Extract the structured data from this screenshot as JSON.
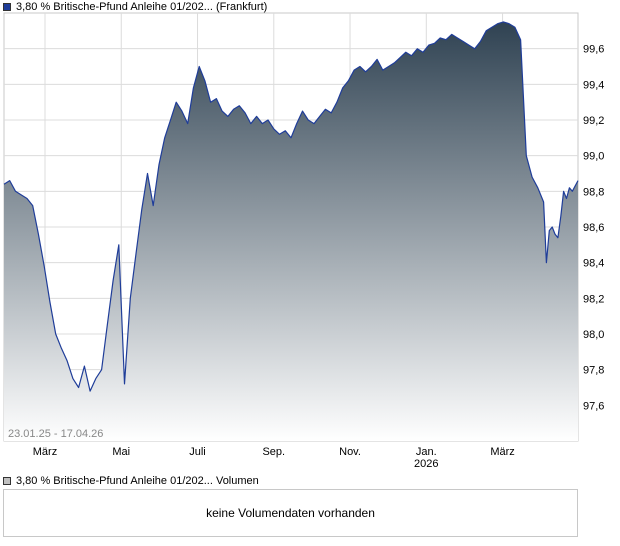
{
  "price_legend": {
    "label": "3,80 % Britische-Pfund Anleihe 01/202...  (Frankfurt)",
    "color": "#1f3d99"
  },
  "volume_legend": {
    "label": "3,80 % Britische-Pfund Anleihe 01/202...  Volumen",
    "color": "#c0c0c0"
  },
  "volume_panel": {
    "message": "keine Volumendaten vorhanden"
  },
  "date_range": "23.01.25 - 17.04.26",
  "chart_data": {
    "type": "area",
    "ylim": [
      97.4,
      99.8
    ],
    "y_ticks": [
      "99,6",
      "99,4",
      "99,2",
      "99,0",
      "98,8",
      "98,6",
      "98,4",
      "98,2",
      "98,0",
      "97,8",
      "97,6"
    ],
    "x_ticks": [
      "März",
      "Mai",
      "Juli",
      "Sep.",
      "Nov.",
      "Jan.",
      "März"
    ],
    "x_subticks": [
      "",
      "",
      "",
      "",
      "",
      "2026",
      ""
    ],
    "grid": true,
    "colors": {
      "line": "#1f3d99",
      "fill_top": "#2f4252",
      "fill_bottom": "#ffffff",
      "grid": "#dcdcdc"
    },
    "series": [
      {
        "values": [
          [
            0.0,
            98.84
          ],
          [
            0.01,
            98.86
          ],
          [
            0.02,
            98.8
          ],
          [
            0.03,
            98.78
          ],
          [
            0.04,
            98.76
          ],
          [
            0.05,
            98.72
          ],
          [
            0.06,
            98.56
          ],
          [
            0.07,
            98.38
          ],
          [
            0.08,
            98.18
          ],
          [
            0.09,
            98.0
          ],
          [
            0.1,
            97.92
          ],
          [
            0.11,
            97.85
          ],
          [
            0.12,
            97.75
          ],
          [
            0.13,
            97.7
          ],
          [
            0.14,
            97.82
          ],
          [
            0.15,
            97.68
          ],
          [
            0.16,
            97.75
          ],
          [
            0.17,
            97.8
          ],
          [
            0.18,
            98.05
          ],
          [
            0.19,
            98.3
          ],
          [
            0.2,
            98.5
          ],
          [
            0.21,
            97.72
          ],
          [
            0.22,
            98.2
          ],
          [
            0.23,
            98.45
          ],
          [
            0.24,
            98.7
          ],
          [
            0.25,
            98.9
          ],
          [
            0.26,
            98.72
          ],
          [
            0.27,
            98.95
          ],
          [
            0.28,
            99.1
          ],
          [
            0.29,
            99.2
          ],
          [
            0.3,
            99.3
          ],
          [
            0.31,
            99.25
          ],
          [
            0.32,
            99.18
          ],
          [
            0.33,
            99.38
          ],
          [
            0.34,
            99.5
          ],
          [
            0.35,
            99.42
          ],
          [
            0.36,
            99.3
          ],
          [
            0.37,
            99.32
          ],
          [
            0.38,
            99.25
          ],
          [
            0.39,
            99.22
          ],
          [
            0.4,
            99.26
          ],
          [
            0.41,
            99.28
          ],
          [
            0.42,
            99.24
          ],
          [
            0.43,
            99.18
          ],
          [
            0.44,
            99.22
          ],
          [
            0.45,
            99.18
          ],
          [
            0.46,
            99.2
          ],
          [
            0.47,
            99.15
          ],
          [
            0.48,
            99.12
          ],
          [
            0.49,
            99.14
          ],
          [
            0.5,
            99.1
          ],
          [
            0.51,
            99.18
          ],
          [
            0.52,
            99.25
          ],
          [
            0.53,
            99.2
          ],
          [
            0.54,
            99.18
          ],
          [
            0.55,
            99.22
          ],
          [
            0.56,
            99.26
          ],
          [
            0.57,
            99.24
          ],
          [
            0.58,
            99.3
          ],
          [
            0.59,
            99.38
          ],
          [
            0.6,
            99.42
          ],
          [
            0.61,
            99.48
          ],
          [
            0.62,
            99.5
          ],
          [
            0.63,
            99.47
          ],
          [
            0.64,
            99.5
          ],
          [
            0.65,
            99.54
          ],
          [
            0.66,
            99.48
          ],
          [
            0.67,
            99.5
          ],
          [
            0.68,
            99.52
          ],
          [
            0.69,
            99.55
          ],
          [
            0.7,
            99.58
          ],
          [
            0.71,
            99.56
          ],
          [
            0.72,
            99.6
          ],
          [
            0.73,
            99.58
          ],
          [
            0.74,
            99.62
          ],
          [
            0.75,
            99.63
          ],
          [
            0.76,
            99.66
          ],
          [
            0.77,
            99.65
          ],
          [
            0.78,
            99.68
          ],
          [
            0.79,
            99.66
          ],
          [
            0.8,
            99.64
          ],
          [
            0.81,
            99.62
          ],
          [
            0.82,
            99.6
          ],
          [
            0.83,
            99.64
          ],
          [
            0.84,
            99.7
          ],
          [
            0.85,
            99.72
          ],
          [
            0.86,
            99.74
          ],
          [
            0.87,
            99.75
          ],
          [
            0.88,
            99.74
          ],
          [
            0.89,
            99.72
          ],
          [
            0.9,
            99.65
          ],
          [
            0.91,
            99.0
          ],
          [
            0.92,
            98.88
          ],
          [
            0.93,
            98.82
          ],
          [
            0.94,
            98.74
          ],
          [
            0.945,
            98.4
          ],
          [
            0.95,
            98.58
          ],
          [
            0.955,
            98.6
          ],
          [
            0.96,
            98.56
          ],
          [
            0.965,
            98.54
          ],
          [
            0.97,
            98.66
          ],
          [
            0.975,
            98.8
          ],
          [
            0.98,
            98.76
          ],
          [
            0.985,
            98.82
          ],
          [
            0.99,
            98.8
          ],
          [
            1.0,
            98.86
          ]
        ]
      }
    ]
  }
}
